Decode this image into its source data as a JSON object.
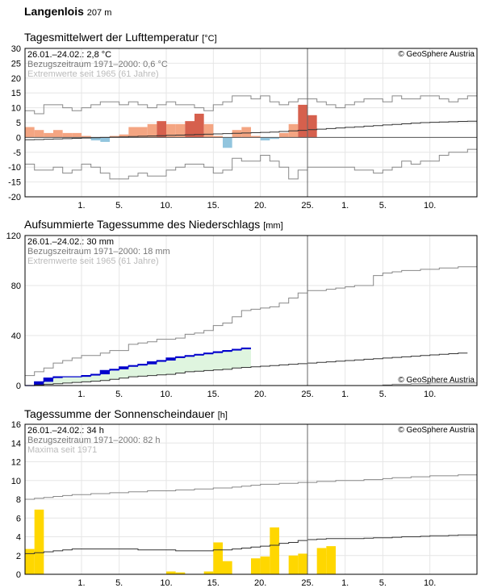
{
  "station": {
    "name": "Langenlois",
    "altitude": "207 m"
  },
  "colors": {
    "warm": "#f4a582",
    "warm_dark": "#d6604d",
    "cold": "#92c5de",
    "precip": "#0000cc",
    "precip_band": "#dff5df",
    "sun": "#ffd700",
    "line_mean": "#333333",
    "line_extreme": "#888888",
    "grid": "#e6e6e6"
  },
  "copyright": "© GeoSphere Austria",
  "x_tick_labels": [
    "1.",
    "5.",
    "10.",
    "15.",
    "20.",
    "25.",
    "1.",
    "5.",
    "10."
  ],
  "chart_data": [
    {
      "type": "bar",
      "title": "Tagesmittelwert der Lufttemperatur",
      "unit": "[°C]",
      "info": [
        "26.01.–24.02.: 2,8 °C",
        "Bezugszeitraum 1971–2000: 0,6 °C",
        "Extremwerte seit 1965 (61 Jahre)"
      ],
      "ylim": [
        -20,
        30
      ],
      "yticks": [
        -20,
        -15,
        -10,
        -5,
        0,
        5,
        10,
        15,
        20,
        25,
        30
      ],
      "values": [
        3.5,
        2.5,
        1.5,
        2.5,
        1.5,
        1.5,
        0.5,
        -1,
        -1.5,
        0.5,
        1,
        3.5,
        3.5,
        4.5,
        5.5,
        4.5,
        4.5,
        5.5,
        8,
        4.5,
        0.5,
        -3.5,
        2.5,
        3.5,
        0.5,
        -1,
        -0.5,
        1.5,
        4.5,
        11,
        7.5
      ],
      "normal": [
        -0.8,
        -0.7,
        -0.6,
        -0.5,
        -0.4,
        -0.3,
        -0.2,
        -0.1,
        0,
        0.1,
        0.2,
        0.3,
        0.4,
        0.5,
        0.6,
        0.7,
        0.8,
        0.9,
        1,
        1.1,
        1.2,
        1.3,
        1.4,
        1.5,
        1.6,
        1.7,
        1.8,
        2,
        2.2,
        2.4,
        2.6,
        2.8,
        3,
        3.2,
        3.4,
        3.6,
        3.8,
        4,
        4.2,
        4.4,
        4.6,
        4.8,
        5,
        5.1,
        5.2,
        5.3,
        5.4,
        5.5
      ],
      "max": [
        9,
        8,
        11,
        11,
        10,
        9,
        10,
        11,
        12,
        12,
        11,
        12,
        11,
        10,
        11,
        12,
        11,
        11,
        10,
        9,
        11,
        12,
        14,
        14,
        13,
        14,
        12,
        11,
        12,
        13,
        13,
        12,
        11,
        10,
        11,
        12,
        13,
        13,
        12,
        14,
        13,
        13,
        14,
        14,
        13,
        12,
        13,
        14
      ],
      "min": [
        -9,
        -11,
        -11,
        -10,
        -12,
        -11,
        -9,
        -10,
        -12,
        -14,
        -14,
        -13,
        -12,
        -13,
        -13,
        -11,
        -10,
        -9,
        -9,
        -10,
        -12,
        -11,
        -7,
        -8,
        -8,
        -6,
        -8,
        -10,
        -14,
        -11,
        -10,
        -10,
        -10,
        -10,
        -10,
        -11,
        -11,
        -12,
        -11,
        -10,
        -8,
        -9,
        -8,
        -8,
        -6,
        -5,
        -5,
        -4
      ]
    },
    {
      "type": "area",
      "title": "Aufsummierte Tagessumme des Niederschlags",
      "unit": "[mm]",
      "info": [
        "26.01.–24.02.: 30 mm",
        "Bezugszeitraum 1971–2000: 18 mm",
        "Extremwerte seit 1965 (61 Jahre)"
      ],
      "ylim": [
        0,
        120
      ],
      "yticks": [
        0,
        40,
        80,
        120
      ],
      "values": [
        0,
        3,
        6,
        7,
        7,
        7,
        8,
        9,
        12,
        13,
        15,
        16,
        17,
        19,
        20,
        22,
        23,
        24,
        25,
        26,
        27,
        28,
        29,
        30
      ],
      "normal": [
        0,
        0.5,
        1,
        1.5,
        2,
        2.5,
        3,
        3.5,
        4,
        5,
        6,
        7,
        7.5,
        8,
        8.5,
        9,
        10,
        11,
        11.5,
        12,
        12.5,
        13,
        14,
        14.5,
        15,
        15.5,
        16,
        16.5,
        17,
        17.5,
        18,
        18.5,
        19,
        19.5,
        20,
        20.5,
        21,
        21.5,
        22,
        22.5,
        23,
        23.5,
        24,
        24.5,
        25,
        25.5,
        26
      ],
      "max": [
        8,
        11,
        14,
        18,
        20,
        22,
        24,
        24,
        26,
        28,
        28,
        33,
        34,
        35,
        37,
        37,
        38,
        41,
        42,
        44,
        48,
        50,
        55,
        60,
        61,
        62,
        63,
        66,
        70,
        74,
        76,
        76,
        77,
        78,
        79,
        80,
        80,
        88,
        90,
        91,
        92,
        92,
        93,
        93,
        94,
        94,
        95,
        95
      ],
      "min": [
        0,
        0,
        0,
        0,
        0,
        0,
        0,
        0,
        0,
        0,
        0,
        0,
        0,
        0,
        0,
        0,
        0,
        0,
        0,
        0,
        0,
        0,
        0,
        0,
        0,
        0,
        0,
        0,
        0,
        0,
        0,
        0,
        0,
        0,
        0,
        0,
        0,
        0,
        0.5,
        1,
        1,
        1.5,
        1.5,
        2,
        2,
        2,
        2,
        2
      ]
    },
    {
      "type": "bar",
      "title": "Tagessumme der Sonnenscheindauer",
      "unit": "[h]",
      "info": [
        "26.01.–24.02.: 34 h",
        "Bezugszeitraum 1971–2000: 82 h",
        "Maxima seit 1971"
      ],
      "ylim": [
        0,
        16
      ],
      "yticks": [
        0,
        2,
        4,
        6,
        8,
        10,
        12,
        14,
        16
      ],
      "values": [
        2.7,
        6.9,
        0,
        0,
        0,
        0,
        0,
        0,
        0,
        0,
        0,
        0,
        0,
        0,
        0,
        0.3,
        0.2,
        0,
        0,
        0.3,
        3.4,
        1.4,
        0,
        0,
        1.7,
        1.9,
        5.0,
        0,
        2.0,
        2.2,
        0,
        2.8,
        3.0
      ],
      "normal": [
        2.2,
        2.3,
        2.4,
        2.5,
        2.6,
        2.7,
        2.7,
        2.7,
        2.7,
        2.7,
        2.7,
        2.7,
        2.6,
        2.6,
        2.6,
        2.6,
        2.5,
        2.5,
        2.5,
        2.5,
        2.6,
        2.6,
        2.7,
        2.8,
        2.9,
        3.0,
        3.1,
        3.3,
        3.4,
        3.6,
        3.7,
        3.75,
        3.8,
        3.8,
        3.8,
        3.8,
        3.85,
        3.9,
        3.9,
        3.95,
        4.0,
        4.0,
        4.05,
        4.1,
        4.1,
        4.15,
        4.2,
        4.2
      ],
      "max": [
        8.0,
        8.1,
        8.2,
        8.3,
        8.4,
        8.5,
        8.5,
        8.6,
        8.6,
        8.7,
        8.7,
        8.8,
        8.8,
        8.9,
        8.9,
        8.9,
        9.0,
        9.0,
        9.1,
        9.1,
        9.2,
        9.2,
        9.3,
        9.4,
        9.5,
        9.6,
        9.6,
        9.7,
        9.7,
        9.8,
        9.8,
        9.9,
        9.9,
        10.0,
        10.0,
        10.0,
        10.1,
        10.1,
        10.2,
        10.3,
        10.3,
        10.4,
        10.4,
        10.5,
        10.5,
        10.5,
        10.6,
        10.6
      ]
    }
  ]
}
